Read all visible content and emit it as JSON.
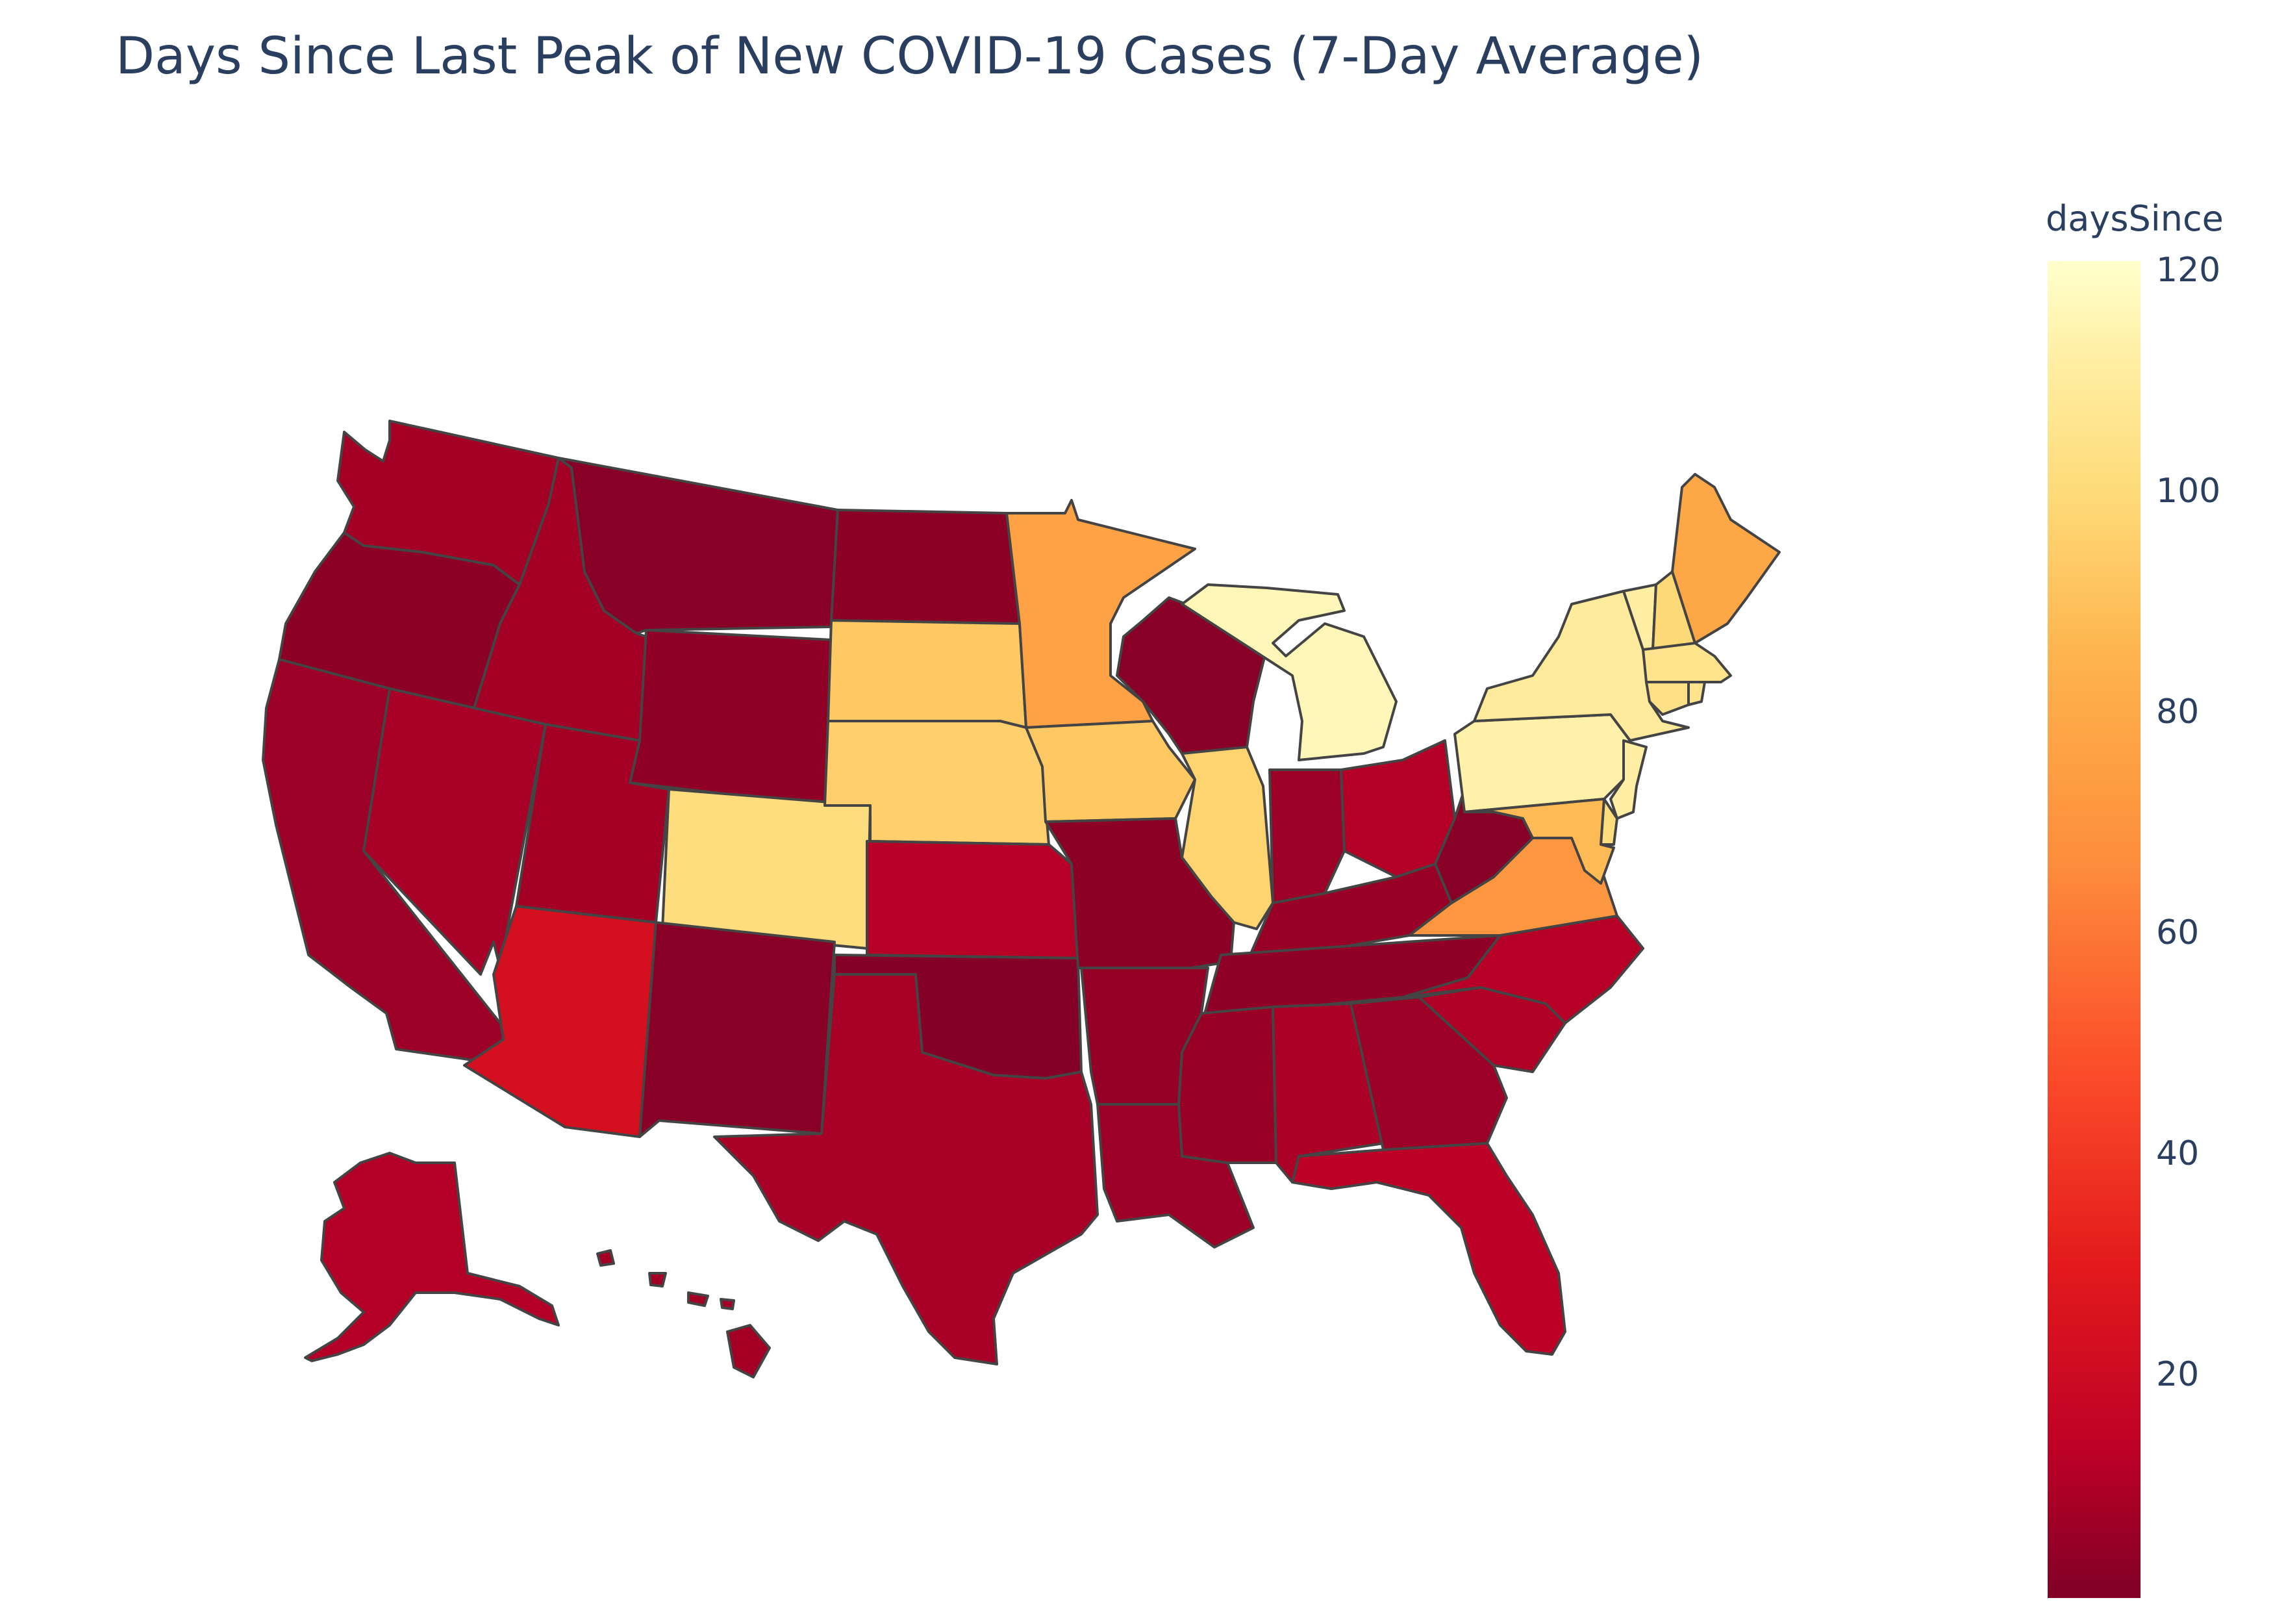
{
  "title": "Days Since Last Peak of New COVID-19 Cases (7-Day Average)",
  "colorbar": {
    "title": "daysSince",
    "ticks": [
      "120",
      "100",
      "80",
      "60",
      "40",
      "20"
    ],
    "colorscale": [
      "#800026",
      "#bd0026",
      "#e31a1c",
      "#fc4e2a",
      "#fd8d3c",
      "#feb24c",
      "#fed976",
      "#ffeda0",
      "#ffffcc"
    ],
    "range": [
      1,
      122
    ]
  },
  "map": {
    "projection": "albers usa",
    "states": [
      {
        "state": "WA",
        "daysSince": 10
      },
      {
        "state": "OR",
        "daysSince": 4
      },
      {
        "state": "CA",
        "daysSince": 8
      },
      {
        "state": "NV",
        "daysSince": 11
      },
      {
        "state": "ID",
        "daysSince": 10
      },
      {
        "state": "MT",
        "daysSince": 3
      },
      {
        "state": "WY",
        "daysSince": 5
      },
      {
        "state": "UT",
        "daysSince": 10
      },
      {
        "state": "AZ",
        "daysSince": 25
      },
      {
        "state": "CO",
        "daysSince": 95
      },
      {
        "state": "NM",
        "daysSince": 3
      },
      {
        "state": "ND",
        "daysSince": 4
      },
      {
        "state": "SD",
        "daysSince": 85
      },
      {
        "state": "NE",
        "daysSince": 88
      },
      {
        "state": "KS",
        "daysSince": 15
      },
      {
        "state": "OK",
        "daysSince": 2
      },
      {
        "state": "TX",
        "daysSince": 11
      },
      {
        "state": "MN",
        "daysSince": 70
      },
      {
        "state": "IA",
        "daysSince": 85
      },
      {
        "state": "MO",
        "daysSince": 4
      },
      {
        "state": "AR",
        "daysSince": 6
      },
      {
        "state": "LA",
        "daysSince": 8
      },
      {
        "state": "WI",
        "daysSince": 3
      },
      {
        "state": "IL",
        "daysSince": 90
      },
      {
        "state": "MI",
        "daysSince": 115
      },
      {
        "state": "IN",
        "daysSince": 8
      },
      {
        "state": "OH",
        "daysSince": 14
      },
      {
        "state": "KY",
        "daysSince": 7
      },
      {
        "state": "TN",
        "daysSince": 5
      },
      {
        "state": "MS",
        "daysSince": 7
      },
      {
        "state": "AL",
        "daysSince": 12
      },
      {
        "state": "GA",
        "daysSince": 8
      },
      {
        "state": "FL",
        "daysSince": 16
      },
      {
        "state": "SC",
        "daysSince": 13
      },
      {
        "state": "NC",
        "daysSince": 15
      },
      {
        "state": "VA",
        "daysSince": 65
      },
      {
        "state": "WV",
        "daysSince": 3
      },
      {
        "state": "PA",
        "daysSince": 110
      },
      {
        "state": "NY",
        "daysSince": 105
      },
      {
        "state": "VT",
        "daysSince": 108
      },
      {
        "state": "NH",
        "daysSince": 92
      },
      {
        "state": "ME",
        "daysSince": 72
      },
      {
        "state": "MA",
        "daysSince": 100
      },
      {
        "state": "CT",
        "daysSince": 98
      },
      {
        "state": "RI",
        "daysSince": 100
      },
      {
        "state": "NJ",
        "daysSince": 108
      },
      {
        "state": "DE",
        "daysSince": 95
      },
      {
        "state": "MD",
        "daysSince": 80
      },
      {
        "state": "AK",
        "daysSince": 14
      },
      {
        "state": "HI",
        "daysSince": 10
      }
    ]
  }
}
